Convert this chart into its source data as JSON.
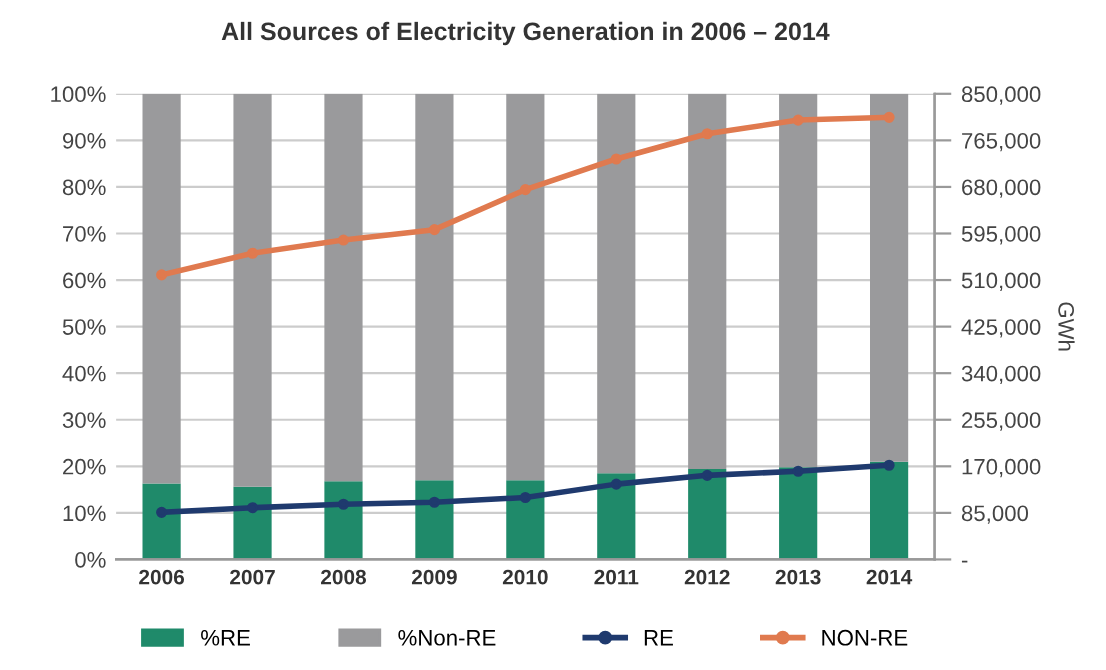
{
  "chart_data": {
    "type": "bar",
    "title": "All Sources of Electricity Generation in 2006 – 2014",
    "categories": [
      "2006",
      "2007",
      "2008",
      "2009",
      "2010",
      "2011",
      "2012",
      "2013",
      "2014"
    ],
    "stacked": true,
    "series": [
      {
        "name": "%RE",
        "color": "#1f8a6a",
        "values": [
          16.3,
          15.6,
          16.8,
          17.0,
          17.0,
          18.5,
          19.4,
          19.8,
          21.0
        ]
      },
      {
        "name": "%Non-RE",
        "color": "#9a9a9c",
        "values": [
          83.7,
          84.4,
          83.2,
          83.0,
          83.0,
          81.5,
          80.6,
          80.2,
          79.0
        ]
      },
      {
        "name": "RE",
        "type": "line",
        "axis": "y2",
        "color": "#1f3a6e",
        "values": [
          86000,
          94500,
          100700,
          104400,
          113000,
          137500,
          153500,
          161000,
          172000
        ]
      },
      {
        "name": "NON-RE",
        "type": "line",
        "axis": "y2",
        "color": "#e07a4f",
        "values": [
          519500,
          559000,
          583000,
          602000,
          675000,
          731000,
          777000,
          802000,
          807000
        ]
      }
    ],
    "ylim": [
      0,
      100
    ],
    "yticks": [
      {
        "value": 0,
        "label": "0%"
      },
      {
        "value": 10,
        "label": "10%"
      },
      {
        "value": 20,
        "label": "20%"
      },
      {
        "value": 30,
        "label": "30%"
      },
      {
        "value": 40,
        "label": "40%"
      },
      {
        "value": 50,
        "label": "50%"
      },
      {
        "value": 60,
        "label": "60%"
      },
      {
        "value": 70,
        "label": "70%"
      },
      {
        "value": 80,
        "label": "80%"
      },
      {
        "value": 90,
        "label": "90%"
      },
      {
        "value": 100,
        "label": "100%"
      }
    ],
    "y2lim": [
      0,
      850000
    ],
    "y2ticks": [
      {
        "value": 0,
        "label": "-"
      },
      {
        "value": 85000,
        "label": "85,000"
      },
      {
        "value": 170000,
        "label": "170,000"
      },
      {
        "value": 255000,
        "label": "255,000"
      },
      {
        "value": 340000,
        "label": "340,000"
      },
      {
        "value": 425000,
        "label": "425,000"
      },
      {
        "value": 510000,
        "label": "510,000"
      },
      {
        "value": 595000,
        "label": "595,000"
      },
      {
        "value": 680000,
        "label": "680,000"
      },
      {
        "value": 765000,
        "label": "765,000"
      },
      {
        "value": 850000,
        "label": "850,000"
      }
    ],
    "y2label": "GWh",
    "grid": "y",
    "legend": "bottom",
    "marker": "circle",
    "line_style": "solid"
  }
}
